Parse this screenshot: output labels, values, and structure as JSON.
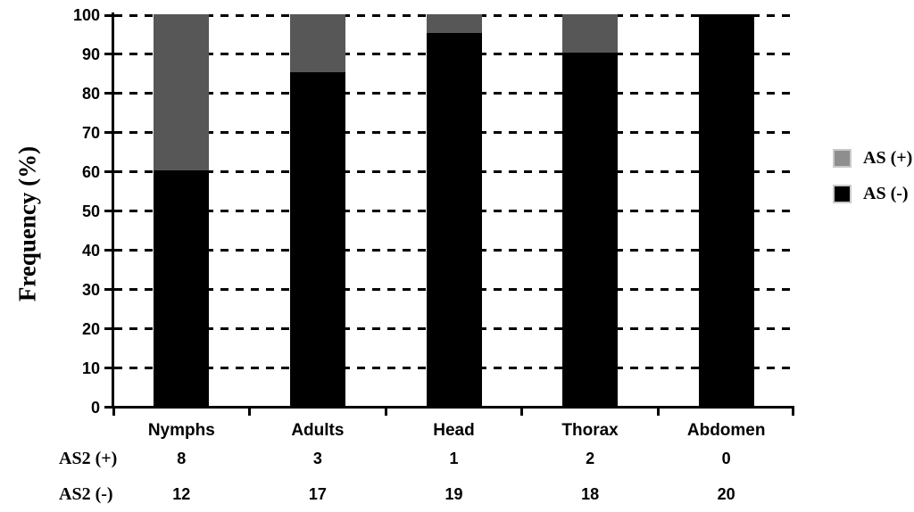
{
  "chart_data": {
    "type": "bar",
    "subtype": "stacked-vertical",
    "title": "",
    "ylabel": "Frequency (%)",
    "xlabel": "",
    "ylim": [
      0,
      100
    ],
    "yticks": [
      0,
      10,
      20,
      30,
      40,
      50,
      60,
      70,
      80,
      90,
      100
    ],
    "grid": "horizontal-dashed",
    "legend_position": "right",
    "categories": [
      "Nymphs",
      "Adults",
      "Head",
      "Thorax",
      "Abdomen"
    ],
    "series": [
      {
        "name": "AS (+)",
        "color": "#575757",
        "values": [
          40,
          15,
          5,
          10,
          0
        ]
      },
      {
        "name": "AS (-)",
        "color": "#000000",
        "values": [
          60,
          85,
          95,
          90,
          100
        ]
      }
    ],
    "legend": [
      {
        "label": "AS (+)",
        "swatch_color": "#8e8e8e"
      },
      {
        "label": "AS (-)",
        "swatch_color": "#000000"
      }
    ],
    "table": {
      "rows": [
        {
          "label": "AS2 (+)",
          "values": [
            8,
            3,
            1,
            2,
            0
          ]
        },
        {
          "label": "AS2 (-)",
          "values": [
            12,
            17,
            19,
            18,
            20
          ]
        }
      ]
    },
    "colors": {
      "axis": "#000000",
      "gridline": "#000000",
      "background": "#ffffff"
    }
  }
}
